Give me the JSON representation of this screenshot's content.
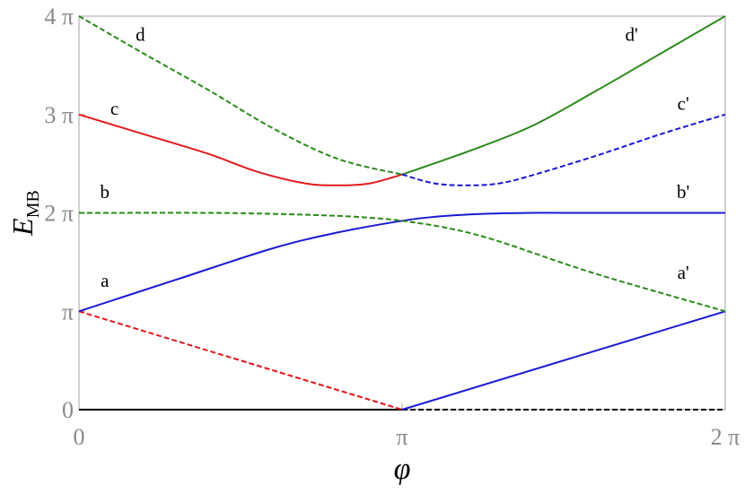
{
  "chart_data": {
    "type": "line",
    "title": "",
    "xlabel": "φ",
    "ylabel": {
      "main": "E",
      "sub": "MB"
    },
    "xlim_pi": [
      0,
      2
    ],
    "ylim_pi": [
      0,
      4
    ],
    "x_ticks": [
      {
        "value_pi": 0,
        "label": "0"
      },
      {
        "value_pi": 1,
        "label": "π"
      },
      {
        "value_pi": 2,
        "label": "2 π"
      }
    ],
    "y_ticks": [
      {
        "value_pi": 0,
        "label": "0"
      },
      {
        "value_pi": 1,
        "label": "π"
      },
      {
        "value_pi": 2,
        "label": "2 π"
      },
      {
        "value_pi": 3,
        "label": "3 π"
      },
      {
        "value_pi": 4,
        "label": "4 π"
      }
    ],
    "grid": false,
    "series": [
      {
        "color": "#000000",
        "dashed": false,
        "x_pi": [
          0,
          1
        ],
        "y_pi": [
          0,
          0
        ]
      },
      {
        "color": "#000000",
        "dashed": true,
        "x_pi": [
          1,
          2
        ],
        "y_pi": [
          0,
          0
        ]
      },
      {
        "color": "#e31a1c",
        "dashed": true,
        "x_pi": [
          0,
          1
        ],
        "y_pi": [
          1,
          0
        ]
      },
      {
        "color": "#1a1ad4",
        "dashed": false,
        "x_pi": [
          1,
          2
        ],
        "y_pi": [
          0,
          1
        ]
      },
      {
        "color": "#1a1ad4",
        "dashed": false,
        "x_pi": [
          0,
          0.3,
          0.6,
          0.8,
          1.0,
          1.1,
          1.25,
          1.4,
          1.6,
          2.0
        ],
        "y_pi": [
          1.0,
          1.32,
          1.64,
          1.8,
          1.92,
          1.96,
          1.99,
          2.0,
          2.0,
          2.0
        ]
      },
      {
        "color": "#2a8a1a",
        "dashed": true,
        "x_pi": [
          0,
          0.4,
          0.6,
          0.8,
          0.9,
          1.0,
          1.15,
          1.3,
          1.6,
          2.0
        ],
        "y_pi": [
          2.0,
          2.0,
          1.99,
          1.97,
          1.95,
          1.92,
          1.84,
          1.71,
          1.38,
          1.0
        ]
      },
      {
        "color": "#e31a1c",
        "dashed": false,
        "x_pi": [
          0,
          0.2,
          0.4,
          0.55,
          0.7,
          0.8,
          0.9,
          1.0
        ],
        "y_pi": [
          3.0,
          2.8,
          2.6,
          2.42,
          2.3,
          2.28,
          2.3,
          2.39
        ]
      },
      {
        "color": "#2a8a1a",
        "dashed": false,
        "x_pi": [
          1.0,
          1.2,
          1.4,
          1.6,
          1.8,
          2.0
        ],
        "y_pi": [
          2.39,
          2.62,
          2.88,
          3.24,
          3.62,
          4.0
        ]
      },
      {
        "color": "#2a8a1a",
        "dashed": true,
        "x_pi": [
          0,
          0.2,
          0.4,
          0.6,
          0.8,
          1.0
        ],
        "y_pi": [
          4.0,
          3.62,
          3.25,
          2.86,
          2.55,
          2.39
        ]
      },
      {
        "color": "#1a1ad4",
        "dashed": true,
        "x_pi": [
          1.0,
          1.1,
          1.2,
          1.3,
          1.4,
          1.6,
          1.8,
          2.0
        ],
        "y_pi": [
          2.39,
          2.3,
          2.28,
          2.3,
          2.38,
          2.58,
          2.8,
          3.0
        ]
      }
    ],
    "annotations": [
      {
        "text": "a",
        "x_pi": 0.08,
        "y_pi": 1.25
      },
      {
        "text": "b",
        "x_pi": 0.08,
        "y_pi": 2.15
      },
      {
        "text": "c",
        "x_pi": 0.11,
        "y_pi": 3.0
      },
      {
        "text": "d",
        "x_pi": 0.19,
        "y_pi": 3.75
      },
      {
        "text": "a'",
        "x_pi": 1.87,
        "y_pi": 1.33
      },
      {
        "text": "b'",
        "x_pi": 1.87,
        "y_pi": 2.15
      },
      {
        "text": "c'",
        "x_pi": 1.87,
        "y_pi": 3.05
      },
      {
        "text": "d'",
        "x_pi": 1.71,
        "y_pi": 3.75
      }
    ]
  }
}
